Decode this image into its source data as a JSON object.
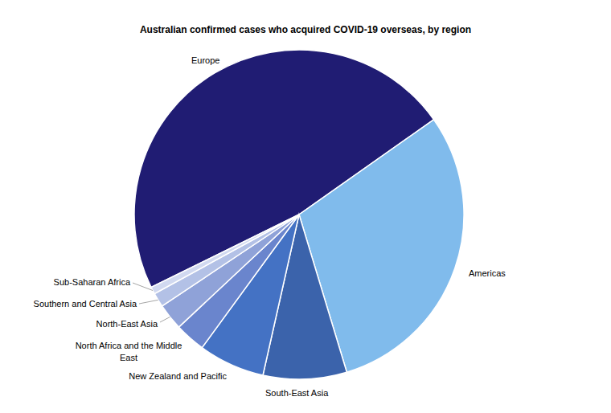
{
  "chart_data": {
    "type": "pie",
    "title": "Australian confirmed cases who acquired COVID-19 overseas, by region",
    "categories": [
      "Europe",
      "Americas",
      "South-East Asia",
      "New Zealand and Pacific",
      "North Africa and the Middle East",
      "North-East Asia",
      "Southern and Central Asia",
      "Sub-Saharan Africa"
    ],
    "values": [
      47.5,
      30.1,
      8.2,
      6.5,
      3.0,
      2.6,
      1.4,
      0.7
    ],
    "colors": [
      "#201c73",
      "#80bbec",
      "#3b63ab",
      "#4472c4",
      "#6a85cd",
      "#8fa2d8",
      "#b3c1e6",
      "#d1d9f0"
    ]
  }
}
